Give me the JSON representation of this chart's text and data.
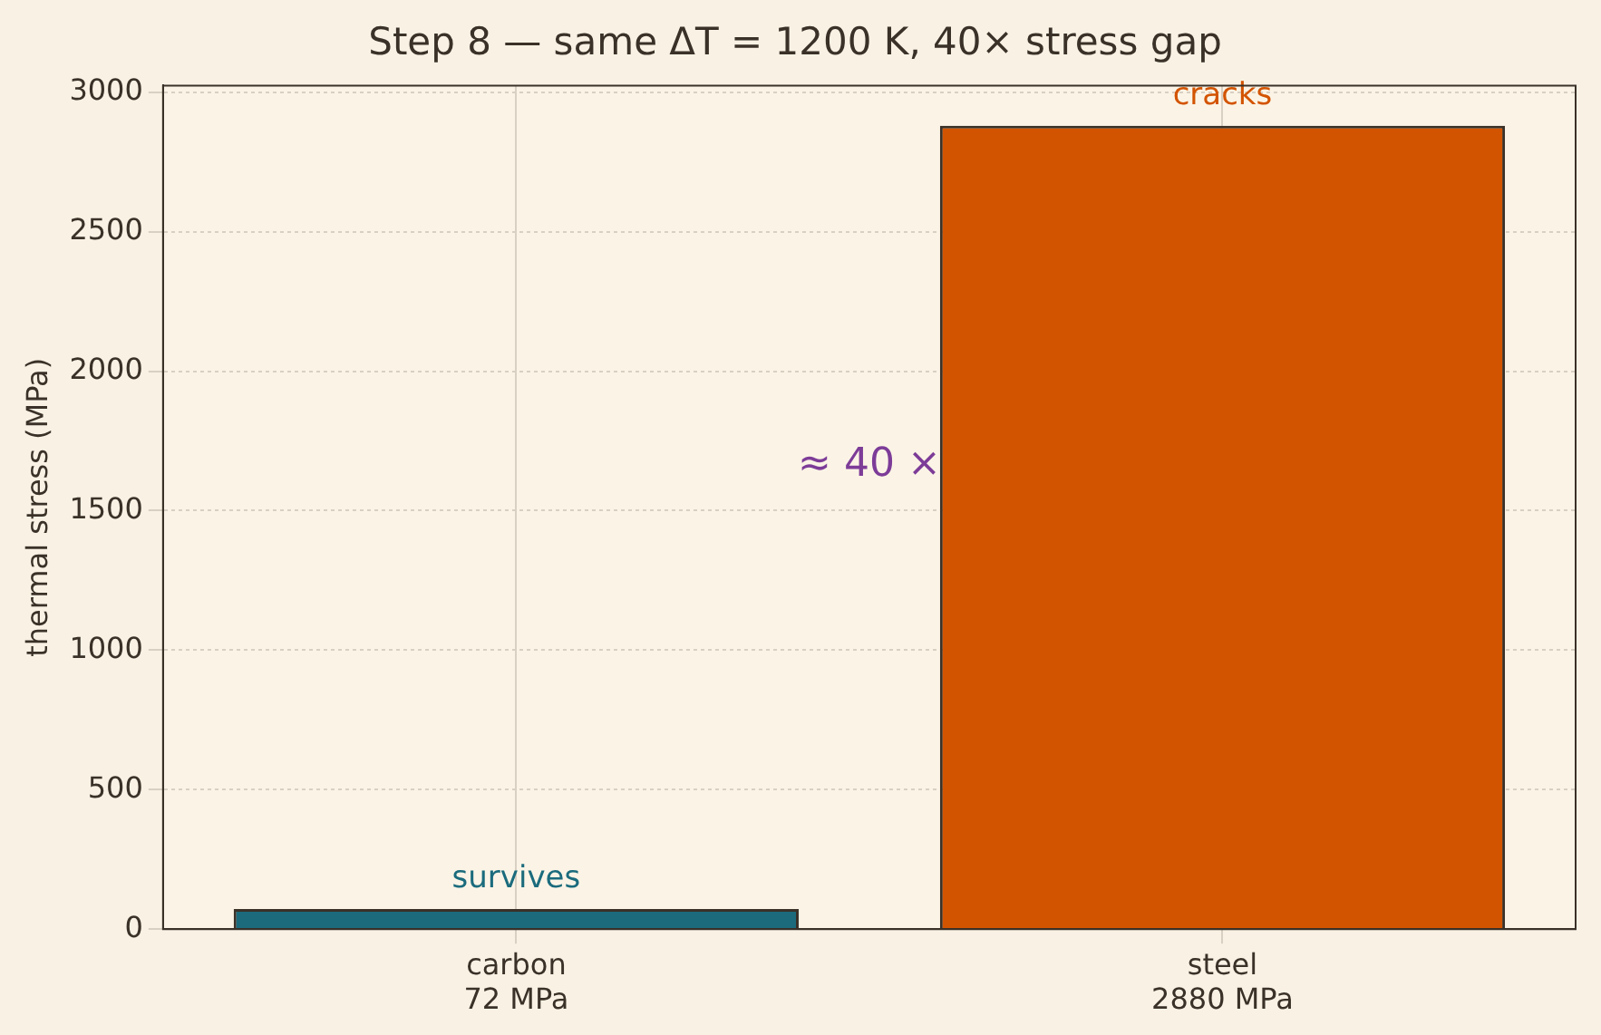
{
  "chart_data": {
    "type": "bar",
    "title": "Step 8 — same ΔT = 1200 K, 40× stress gap",
    "ylabel": "thermal stress (MPa)",
    "categories": [
      "carbon\n72 MPa",
      "steel\n2880 MPa"
    ],
    "values": [
      72,
      2880
    ],
    "colors": [
      "#1b6b7d",
      "#d35400"
    ],
    "ylim": [
      0,
      3024
    ],
    "yticks": [
      0,
      500,
      1000,
      1500,
      2000,
      2500,
      3000
    ],
    "grid": true,
    "annotations": [
      "survives",
      "cracks",
      "≈ 40 ×"
    ]
  }
}
